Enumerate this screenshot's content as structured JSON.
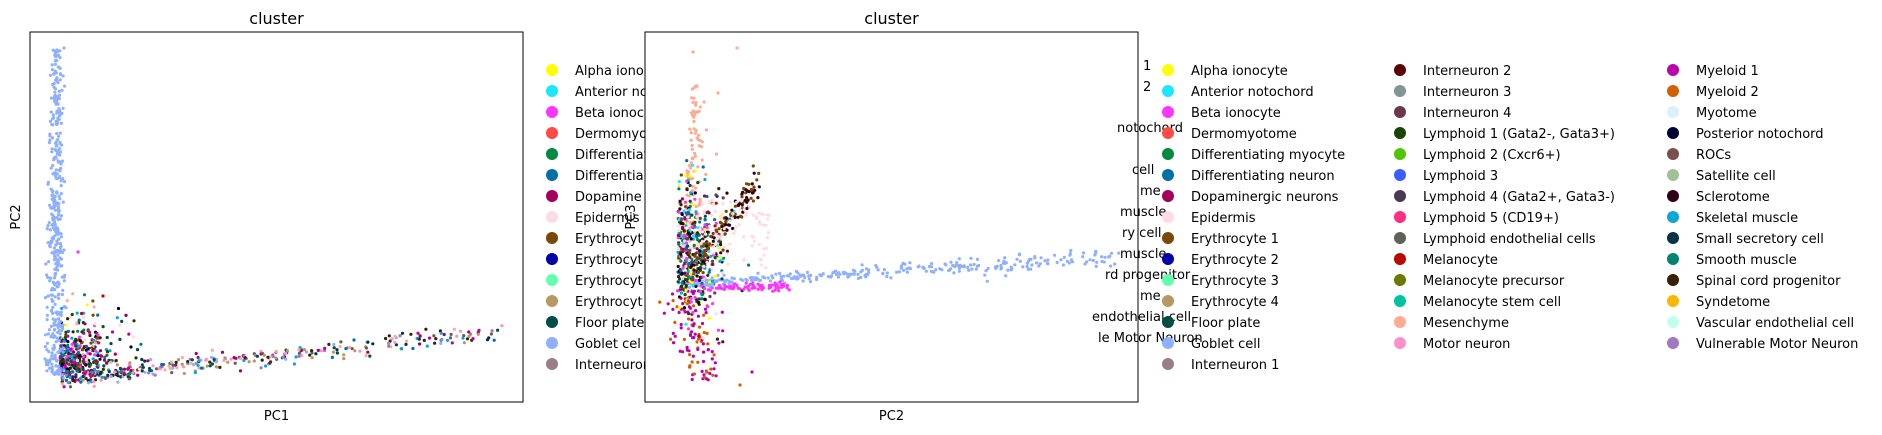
{
  "chart_data": [
    {
      "type": "scatter",
      "title": "cluster",
      "xlabel": "PC1",
      "ylabel": "PC2",
      "grid": false,
      "ticks": false,
      "legend_placement": "right (clipped by neighbouring panel)",
      "legend_visible": [
        "Alpha ionoc",
        "Anterior no",
        "Beta ionoc",
        "Dermomyo",
        "Differentiati",
        "Differentia",
        "Dopamine",
        "Epidermis",
        "Erythrocyt",
        "Erythrocyt",
        "Erythrocyt",
        "Erythrocyt",
        "Floor plate",
        "Goblet cel",
        "Interneuron"
      ],
      "series_groups": [
        {
          "cluster": "Goblet cell",
          "x": [
            0.03,
            0.04,
            0.05,
            0.06,
            0.07
          ],
          "y": [
            0.1,
            0.3,
            0.55,
            0.75,
            0.92
          ]
        },
        {
          "cluster": "Erythrocyte 4",
          "x": [
            0.12,
            0.3,
            0.55,
            0.8,
            0.95
          ],
          "y": [
            0.08,
            0.11,
            0.15,
            0.19,
            0.22
          ]
        }
      ]
    },
    {
      "type": "scatter",
      "title": "cluster",
      "xlabel": "PC2",
      "ylabel": "PC3",
      "grid": false,
      "ticks": false,
      "legend_placement": "right, 4 columns"
    }
  ],
  "legend": {
    "columns": [
      [
        {
          "label": "Alpha ionocyte",
          "color": "#ffff00"
        },
        {
          "label": "Anterior notochord",
          "color": "#1ce6ff"
        },
        {
          "label": "Beta ionocyte",
          "color": "#ff34ff"
        },
        {
          "label": "Dermomyotome",
          "color": "#ff4a46"
        },
        {
          "label": "Differentiating myocyte",
          "color": "#008941"
        },
        {
          "label": "Differentiating neuron",
          "color": "#006fa6"
        },
        {
          "label": "Dopaminergic neurons",
          "color": "#a30059"
        },
        {
          "label": "Epidermis",
          "color": "#ffdbe5"
        },
        {
          "label": "Erythrocyte 1",
          "color": "#7a4900"
        },
        {
          "label": "Erythrocyte 2",
          "color": "#0000a6"
        },
        {
          "label": "Erythrocyte 3",
          "color": "#63ffac"
        },
        {
          "label": "Erythrocyte 4",
          "color": "#b79762"
        },
        {
          "label": "Floor plate",
          "color": "#004d43"
        },
        {
          "label": "Goblet cell",
          "color": "#8fb0ff"
        },
        {
          "label": "Interneuron 1",
          "color": "#997d87"
        }
      ],
      [
        {
          "label": "Interneuron 2",
          "color": "#5a0007"
        },
        {
          "label": "Interneuron 3",
          "color": "#809693"
        },
        {
          "label": "Interneuron 4",
          "color": "#6a3a4c"
        },
        {
          "label": "Lymphoid 1 (Gata2-, Gata3+)",
          "color": "#1b4400"
        },
        {
          "label": "Lymphoid 2 (Cxcr6+)",
          "color": "#4fc601"
        },
        {
          "label": "Lymphoid 3",
          "color": "#3b5dff"
        },
        {
          "label": "Lymphoid 4 (Gata2+, Gata3-)",
          "color": "#4a3b53"
        },
        {
          "label": "Lymphoid 5 (CD19+)",
          "color": "#ff2f80"
        },
        {
          "label": "Lymphoid endothelial cells",
          "color": "#61615a"
        },
        {
          "label": "Melanocyte",
          "color": "#ba0900"
        },
        {
          "label": "Melanocyte precursor",
          "color": "#6b7900"
        },
        {
          "label": "Melanocyte stem cell",
          "color": "#00c2a0"
        },
        {
          "label": "Mesenchyme",
          "color": "#ffaa92"
        },
        {
          "label": "Motor neuron",
          "color": "#ff90c9"
        }
      ],
      [
        {
          "label": "Myeloid 1",
          "color": "#b903aa"
        },
        {
          "label": "Myeloid 2",
          "color": "#d16100"
        },
        {
          "label": "Myotome",
          "color": "#ddefff"
        },
        {
          "label": "Posterior notochord",
          "color": "#000035"
        },
        {
          "label": "ROCs",
          "color": "#7b4f4b"
        },
        {
          "label": "Satellite cell",
          "color": "#a1c299"
        },
        {
          "label": "Sclerotome",
          "color": "#300018"
        },
        {
          "label": "Skeletal muscle",
          "color": "#0aa6d8"
        },
        {
          "label": "Small secretory cell",
          "color": "#013349"
        },
        {
          "label": "Smooth muscle",
          "color": "#00846f"
        },
        {
          "label": "Spinal cord progenitor",
          "color": "#372101"
        },
        {
          "label": "Syndetome",
          "color": "#ffb500"
        },
        {
          "label": "Vascular endothelial cell",
          "color": "#c2ffed"
        },
        {
          "label": "Vulnerable Motor Neuron",
          "color": "#a079bf"
        }
      ]
    ],
    "overlap_fragments": [
      {
        "text": "1"
      },
      {
        "text": "2"
      },
      {
        "text": "notochord"
      },
      {
        "text": "cell"
      },
      {
        "text": "me"
      },
      {
        "text": "muscle"
      },
      {
        "text": "ry cell"
      },
      {
        "text": "muscle"
      },
      {
        "text": "rd progenitor"
      },
      {
        "text": "me"
      },
      {
        "text": "endothelial cell"
      },
      {
        "text": "le Motor Neuron"
      }
    ]
  }
}
